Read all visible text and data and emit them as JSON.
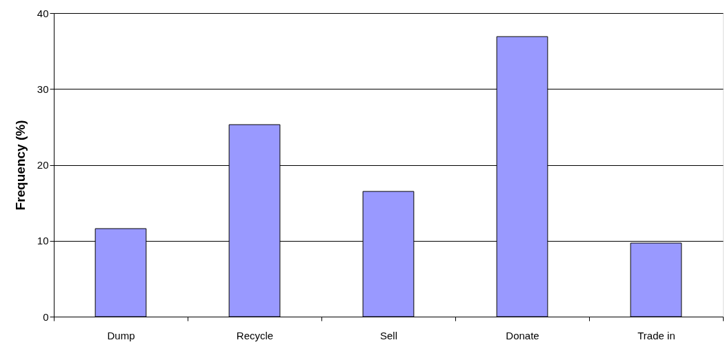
{
  "chart_data": {
    "type": "bar",
    "ylabel": "Frequency (%)",
    "categories": [
      "Dump",
      "Recycle",
      "Sell",
      "Donate",
      "Trade in"
    ],
    "series": [
      {
        "color": "#9999ff",
        "values": [
          11.6,
          25.3,
          16.5,
          36.9,
          9.7
        ]
      }
    ],
    "ylim": [
      0,
      40
    ],
    "yticks": [
      0,
      10,
      20,
      30,
      40
    ],
    "grid": "y",
    "legend": false
  }
}
